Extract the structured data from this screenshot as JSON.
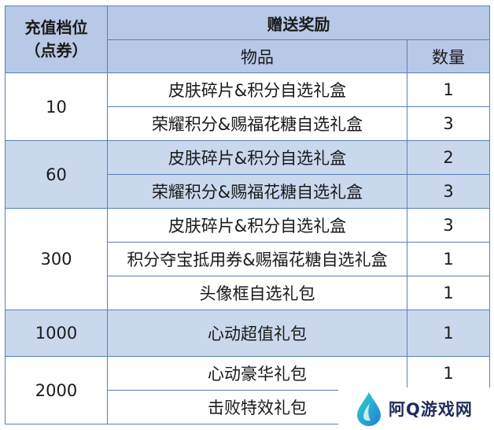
{
  "header": {
    "tier_line1": "充值档位",
    "tier_line2": "（点券）",
    "reward_title": "赠送奖励",
    "col_item": "物品",
    "col_qty": "数量"
  },
  "tiers": [
    {
      "amount": "10",
      "rows": [
        {
          "item": "皮肤碎片&积分自选礼盒",
          "qty": "1"
        },
        {
          "item": "荣耀积分&赐福花糖自选礼盒",
          "qty": "3"
        }
      ]
    },
    {
      "amount": "60",
      "rows": [
        {
          "item": "皮肤碎片&积分自选礼盒",
          "qty": "2"
        },
        {
          "item": "荣耀积分&赐福花糖自选礼盒",
          "qty": "3"
        }
      ]
    },
    {
      "amount": "300",
      "rows": [
        {
          "item": "皮肤碎片&积分自选礼盒",
          "qty": "3"
        },
        {
          "item": "积分夺宝抵用券&赐福花糖自选礼盒",
          "qty": "1"
        },
        {
          "item": "头像框自选礼包",
          "qty": "1"
        }
      ]
    },
    {
      "amount": "1000",
      "rows": [
        {
          "item": "心动超值礼包",
          "qty": "1"
        }
      ]
    },
    {
      "amount": "2000",
      "rows": [
        {
          "item": "心动豪华礼包",
          "qty": "1"
        },
        {
          "item": "击败特效礼包",
          "qty": ""
        }
      ]
    }
  ],
  "watermark": {
    "text": "阿Q游戏网"
  },
  "colors": {
    "header_bg": "#b7c9e6",
    "band_bg": "#cad8ee",
    "border": "#5a7fb5"
  }
}
